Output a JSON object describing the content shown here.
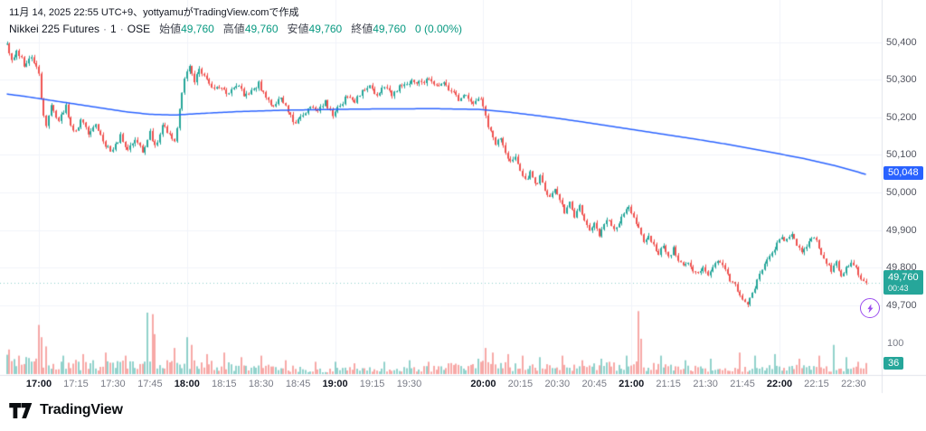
{
  "meta": {
    "attribution": "11月 14, 2025 22:55 UTC+9、yottyamuがTradingView.comで作成"
  },
  "legend": {
    "symbol": "Nikkei 225 Futures",
    "separator": "·",
    "interval": "1",
    "exchange": "OSE",
    "fields": [
      {
        "label": "始値",
        "value": "49,760"
      },
      {
        "label": "高値",
        "value": "49,760"
      },
      {
        "label": "安値",
        "value": "49,760"
      },
      {
        "label": "終値",
        "value": "49,760"
      }
    ],
    "change": "0 (0.00%)"
  },
  "price_axis": {
    "labels": [
      "50,400",
      "50,300",
      "50,200",
      "50,100",
      "50,000",
      "49,900",
      "49,800",
      "49,700"
    ],
    "ma_label": "50,048",
    "last_price": "49,760",
    "countdown": "00:43"
  },
  "volume_axis": {
    "grid_label": "100",
    "current": "36"
  },
  "time_axis": {
    "labels": [
      "17:00",
      "17:15",
      "17:30",
      "17:45",
      "18:00",
      "18:15",
      "18:30",
      "18:45",
      "19:00",
      "19:15",
      "19:30",
      "20:00",
      "20:15",
      "20:30",
      "20:45",
      "21:00",
      "21:15",
      "21:30",
      "21:45",
      "22:00",
      "22:15",
      "22:30"
    ]
  },
  "footer": {
    "logo_text": "TradingView"
  },
  "colors": {
    "up": "#26a69a",
    "down": "#ef5350",
    "vol_up": "rgba(38,166,154,0.5)",
    "vol_down": "rgba(239,83,80,0.5)",
    "ma": "#2962ff",
    "ma_tag_bg": "#2962ff",
    "last_tag_bg": "#26a69a",
    "vol_badge_bg": "#26a69a",
    "grid": "#f0f3fa",
    "axis_border": "#e0e3eb",
    "purple": "#9b4dee"
  },
  "chart_data": {
    "type": "candlestick",
    "title": "Nikkei 225 Futures · 1 · OSE",
    "interval_minutes": 1,
    "last_price": 49760,
    "open": 49760,
    "high": 49760,
    "low": 49760,
    "close": 49760,
    "change": 0,
    "change_pct": 0.0,
    "volume_current": 36,
    "price_axis_range": [
      49690,
      50440
    ],
    "grid_prices": [
      50400,
      50300,
      50200,
      50100,
      50000,
      49900,
      49800,
      49700
    ],
    "t_unit": "minutes_after_17:00",
    "t_start": -13,
    "t_end": 335,
    "price_path": [
      [
        -13,
        50390
      ],
      [
        -11,
        50350
      ],
      [
        -9,
        50380
      ],
      [
        -6,
        50340
      ],
      [
        -3,
        50360
      ],
      [
        -1,
        50330
      ],
      [
        0,
        50320
      ],
      [
        1,
        50250
      ],
      [
        3,
        50170
      ],
      [
        5,
        50230
      ],
      [
        8,
        50190
      ],
      [
        11,
        50230
      ],
      [
        14,
        50160
      ],
      [
        17,
        50190
      ],
      [
        20,
        50160
      ],
      [
        23,
        50180
      ],
      [
        26,
        50130
      ],
      [
        30,
        50110
      ],
      [
        33,
        50150
      ],
      [
        36,
        50110
      ],
      [
        39,
        50140
      ],
      [
        42,
        50110
      ],
      [
        45,
        50160
      ],
      [
        47,
        50120
      ],
      [
        50,
        50180
      ],
      [
        53,
        50150
      ],
      [
        55,
        50130
      ],
      [
        57,
        50220
      ],
      [
        59,
        50300
      ],
      [
        61,
        50330
      ],
      [
        63,
        50290
      ],
      [
        65,
        50330
      ],
      [
        68,
        50300
      ],
      [
        71,
        50270
      ],
      [
        74,
        50280
      ],
      [
        77,
        50260
      ],
      [
        80,
        50290
      ],
      [
        83,
        50260
      ],
      [
        86,
        50270
      ],
      [
        89,
        50290
      ],
      [
        92,
        50250
      ],
      [
        95,
        50230
      ],
      [
        98,
        50250
      ],
      [
        101,
        50220
      ],
      [
        104,
        50180
      ],
      [
        107,
        50210
      ],
      [
        110,
        50230
      ],
      [
        113,
        50220
      ],
      [
        116,
        50240
      ],
      [
        119,
        50210
      ],
      [
        122,
        50230
      ],
      [
        125,
        50260
      ],
      [
        128,
        50240
      ],
      [
        131,
        50270
      ],
      [
        134,
        50280
      ],
      [
        137,
        50260
      ],
      [
        140,
        50280
      ],
      [
        143,
        50260
      ],
      [
        146,
        50280
      ],
      [
        149,
        50290
      ],
      [
        152,
        50300
      ],
      [
        155,
        50290
      ],
      [
        158,
        50300
      ],
      [
        161,
        50280
      ],
      [
        164,
        50290
      ],
      [
        167,
        50270
      ],
      [
        170,
        50250
      ],
      [
        173,
        50260
      ],
      [
        176,
        50240
      ],
      [
        179,
        50250
      ],
      [
        181,
        50200
      ],
      [
        183,
        50160
      ],
      [
        185,
        50130
      ],
      [
        187,
        50150
      ],
      [
        189,
        50100
      ],
      [
        191,
        50080
      ],
      [
        193,
        50100
      ],
      [
        195,
        50060
      ],
      [
        197,
        50030
      ],
      [
        199,
        50050
      ],
      [
        201,
        50020
      ],
      [
        203,
        50040
      ],
      [
        205,
        50010
      ],
      [
        207,
        49990
      ],
      [
        209,
        50010
      ],
      [
        211,
        49980
      ],
      [
        213,
        49950
      ],
      [
        215,
        49970
      ],
      [
        217,
        49940
      ],
      [
        219,
        49960
      ],
      [
        221,
        49930
      ],
      [
        223,
        49900
      ],
      [
        225,
        49920
      ],
      [
        227,
        49890
      ],
      [
        229,
        49910
      ],
      [
        231,
        49930
      ],
      [
        233,
        49900
      ],
      [
        235,
        49920
      ],
      [
        237,
        49940
      ],
      [
        239,
        49960
      ],
      [
        241,
        49940
      ],
      [
        243,
        49900
      ],
      [
        245,
        49870
      ],
      [
        247,
        49890
      ],
      [
        249,
        49860
      ],
      [
        251,
        49840
      ],
      [
        253,
        49860
      ],
      [
        255,
        49830
      ],
      [
        257,
        49850
      ],
      [
        259,
        49820
      ],
      [
        261,
        49800
      ],
      [
        263,
        49820
      ],
      [
        265,
        49790
      ],
      [
        267,
        49780
      ],
      [
        269,
        49800
      ],
      [
        271,
        49780
      ],
      [
        273,
        49800
      ],
      [
        275,
        49820
      ],
      [
        277,
        49800
      ],
      [
        279,
        49780
      ],
      [
        281,
        49760
      ],
      [
        283,
        49740
      ],
      [
        285,
        49710
      ],
      [
        287,
        49700
      ],
      [
        289,
        49730
      ],
      [
        291,
        49770
      ],
      [
        293,
        49800
      ],
      [
        295,
        49820
      ],
      [
        297,
        49840
      ],
      [
        299,
        49860
      ],
      [
        301,
        49880
      ],
      [
        303,
        49870
      ],
      [
        305,
        49890
      ],
      [
        307,
        49860
      ],
      [
        309,
        49840
      ],
      [
        311,
        49860
      ],
      [
        313,
        49880
      ],
      [
        315,
        49870
      ],
      [
        317,
        49840
      ],
      [
        319,
        49810
      ],
      [
        321,
        49790
      ],
      [
        323,
        49810
      ],
      [
        325,
        49780
      ],
      [
        327,
        49800
      ],
      [
        329,
        49820
      ],
      [
        331,
        49800
      ],
      [
        333,
        49770
      ],
      [
        335,
        49760
      ]
    ],
    "ma_line": {
      "name": "MA",
      "last_value": 50048,
      "path": [
        [
          -13,
          50262
        ],
        [
          -5,
          50255
        ],
        [
          5,
          50245
        ],
        [
          15,
          50235
        ],
        [
          25,
          50225
        ],
        [
          35,
          50215
        ],
        [
          45,
          50208
        ],
        [
          55,
          50206
        ],
        [
          65,
          50210
        ],
        [
          80,
          50215
        ],
        [
          100,
          50219
        ],
        [
          130,
          50222
        ],
        [
          160,
          50223
        ],
        [
          178,
          50221
        ],
        [
          190,
          50214
        ],
        [
          205,
          50202
        ],
        [
          220,
          50188
        ],
        [
          235,
          50173
        ],
        [
          250,
          50158
        ],
        [
          265,
          50143
        ],
        [
          280,
          50127
        ],
        [
          295,
          50109
        ],
        [
          310,
          50090
        ],
        [
          322,
          50072
        ],
        [
          330,
          50058
        ],
        [
          335,
          50048
        ]
      ]
    },
    "volume": {
      "base": [
        [
          -13,
          45
        ],
        [
          0,
          40
        ],
        [
          30,
          30
        ],
        [
          60,
          35
        ],
        [
          90,
          22
        ],
        [
          120,
          15
        ],
        [
          150,
          18
        ],
        [
          180,
          30
        ],
        [
          210,
          22
        ],
        [
          240,
          30
        ],
        [
          270,
          18
        ],
        [
          300,
          22
        ],
        [
          335,
          18
        ]
      ],
      "spikes": [
        [
          -12,
          80
        ],
        [
          -8,
          60
        ],
        [
          0,
          160
        ],
        [
          1,
          120
        ],
        [
          3,
          90
        ],
        [
          10,
          60
        ],
        [
          18,
          65
        ],
        [
          27,
          70
        ],
        [
          35,
          60
        ],
        [
          44,
          200
        ],
        [
          46,
          195
        ],
        [
          47,
          130
        ],
        [
          55,
          85
        ],
        [
          60,
          120
        ],
        [
          62,
          95
        ],
        [
          68,
          65
        ],
        [
          75,
          70
        ],
        [
          82,
          55
        ],
        [
          90,
          60
        ],
        [
          100,
          45
        ],
        [
          112,
          40
        ],
        [
          120,
          40
        ],
        [
          128,
          35
        ],
        [
          140,
          40
        ],
        [
          150,
          45
        ],
        [
          158,
          40
        ],
        [
          166,
          35
        ],
        [
          178,
          50
        ],
        [
          181,
          85
        ],
        [
          184,
          70
        ],
        [
          190,
          65
        ],
        [
          196,
          60
        ],
        [
          203,
          55
        ],
        [
          212,
          60
        ],
        [
          220,
          45
        ],
        [
          228,
          50
        ],
        [
          238,
          60
        ],
        [
          243,
          205
        ],
        [
          244,
          115
        ],
        [
          252,
          60
        ],
        [
          262,
          45
        ],
        [
          272,
          50
        ],
        [
          284,
          70
        ],
        [
          290,
          60
        ],
        [
          298,
          65
        ],
        [
          308,
          50
        ],
        [
          316,
          60
        ],
        [
          322,
          95
        ],
        [
          327,
          55
        ],
        [
          332,
          40
        ],
        [
          335,
          36
        ]
      ]
    }
  }
}
